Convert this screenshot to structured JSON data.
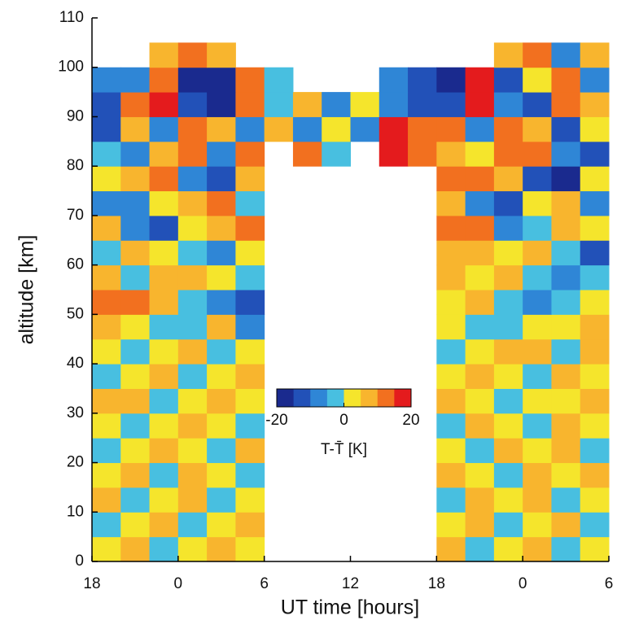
{
  "chart_data": {
    "type": "heatmap",
    "xlabel": "UT time [hours]",
    "ylabel": "altitude [km]",
    "xlim": [
      18,
      54
    ],
    "ylim": [
      0,
      110
    ],
    "xticks": [
      18,
      {
        "value": 24,
        "label": "0"
      },
      {
        "value": 30,
        "label": "6"
      },
      {
        "value": 36,
        "label": "12"
      },
      {
        "value": 42,
        "label": "18"
      },
      {
        "value": 48,
        "label": "0"
      },
      {
        "value": 54,
        "label": "6"
      }
    ],
    "yticks": [
      0,
      10,
      20,
      30,
      40,
      50,
      60,
      70,
      80,
      90,
      100,
      110
    ],
    "x": [
      19,
      21,
      23,
      25,
      27,
      29,
      31,
      33,
      35,
      37,
      39,
      41,
      43,
      45,
      47,
      49,
      51,
      53
    ],
    "y": [
      2.5,
      7.5,
      12.5,
      17.5,
      22.5,
      27.5,
      32.5,
      37.5,
      42.5,
      47.5,
      52.5,
      57.5,
      62.5,
      67.5,
      72.5,
      77.5,
      82.5,
      87.5,
      92.5,
      97.5,
      102.5
    ],
    "z": [
      [
        2,
        5,
        -2,
        4,
        6,
        3,
        null,
        null,
        null,
        null,
        null,
        null,
        5,
        -2,
        4,
        6,
        -1,
        3
      ],
      [
        -2,
        4,
        6,
        -1,
        3,
        5,
        null,
        null,
        null,
        null,
        null,
        null,
        4,
        6,
        -2,
        3,
        5,
        -3
      ],
      [
        5,
        -2,
        3,
        7,
        -1,
        2,
        null,
        null,
        null,
        null,
        null,
        null,
        -2,
        5,
        3,
        6,
        -1,
        4
      ],
      [
        3,
        8,
        -1,
        5,
        4,
        -2,
        null,
        null,
        null,
        null,
        null,
        null,
        6,
        4,
        -2,
        5,
        3,
        7
      ],
      [
        -1,
        4,
        7,
        2,
        -2,
        5,
        null,
        null,
        null,
        null,
        null,
        null,
        3,
        -2,
        6,
        4,
        8,
        -1
      ],
      [
        4,
        -3,
        2,
        6,
        3,
        -1,
        null,
        null,
        null,
        null,
        null,
        null,
        -3,
        5,
        2,
        -1,
        6,
        3
      ],
      [
        6,
        5,
        -2,
        3,
        7,
        4,
        null,
        null,
        null,
        null,
        null,
        null,
        5,
        2,
        -3,
        4,
        2,
        6
      ],
      [
        -2,
        3,
        5,
        -3,
        2,
        6,
        null,
        null,
        null,
        null,
        null,
        null,
        3,
        6,
        4,
        -2,
        5,
        2
      ],
      [
        3,
        -4,
        4,
        6,
        -2,
        3,
        null,
        null,
        null,
        null,
        null,
        null,
        -4,
        3,
        6,
        5,
        -3,
        8
      ],
      [
        6,
        2,
        -3,
        -5,
        5,
        -6,
        null,
        null,
        null,
        null,
        null,
        null,
        4,
        -3,
        -2,
        3,
        4,
        5
      ],
      [
        12,
        10,
        6,
        -4,
        -8,
        -12,
        null,
        null,
        null,
        null,
        null,
        null,
        3,
        5,
        -4,
        -6,
        -3,
        2
      ],
      [
        8,
        -3,
        5,
        9,
        4,
        -5,
        null,
        null,
        null,
        null,
        null,
        null,
        6,
        3,
        8,
        -3,
        -8,
        -5
      ],
      [
        -4,
        6,
        3,
        -5,
        -8,
        3,
        null,
        null,
        null,
        null,
        null,
        null,
        9,
        6,
        2,
        8,
        -3,
        -12
      ],
      [
        5,
        -10,
        -14,
        4,
        8,
        10,
        null,
        null,
        null,
        null,
        null,
        null,
        13,
        10,
        -8,
        -4,
        6,
        3
      ],
      [
        -6,
        -8,
        4,
        9,
        12,
        -4,
        null,
        null,
        null,
        null,
        null,
        null,
        7,
        -6,
        -14,
        3,
        9,
        -8
      ],
      [
        4,
        6,
        12,
        -10,
        -13,
        8,
        null,
        null,
        null,
        null,
        null,
        null,
        10,
        12,
        6,
        -12,
        -16,
        4
      ],
      [
        -3,
        -8,
        6,
        11,
        -6,
        14,
        null,
        12,
        -4,
        null,
        15,
        10,
        8,
        4,
        12,
        10,
        -10,
        -14
      ],
      [
        -12,
        6,
        -10,
        14,
        8,
        -8,
        5,
        -6,
        3,
        -8,
        16,
        12,
        14,
        -8,
        10,
        6,
        -12,
        4
      ],
      [
        -14,
        10,
        16,
        -12,
        -16,
        12,
        -5,
        8,
        -10,
        4,
        -6,
        -12,
        -14,
        16,
        -10,
        -15,
        10,
        8
      ],
      [
        -10,
        -6,
        14,
        -16,
        -18,
        12,
        -4,
        null,
        null,
        null,
        -8,
        -12,
        -16,
        18,
        -14,
        4,
        10,
        -10
      ],
      [
        null,
        null,
        8,
        10,
        6,
        null,
        null,
        null,
        null,
        null,
        null,
        null,
        null,
        null,
        8,
        12,
        -8,
        6
      ]
    ],
    "colors": [
      "#1a2a8e",
      "#2251b8",
      "#2f86d6",
      "#48bfe0",
      "#f5e52c",
      "#f8b52e",
      "#f2701f",
      "#e41b1d"
    ],
    "clim": [
      -20,
      20
    ],
    "cticks": [
      -20,
      0,
      20
    ],
    "colorbar_label": "T-T̄ [K]"
  }
}
